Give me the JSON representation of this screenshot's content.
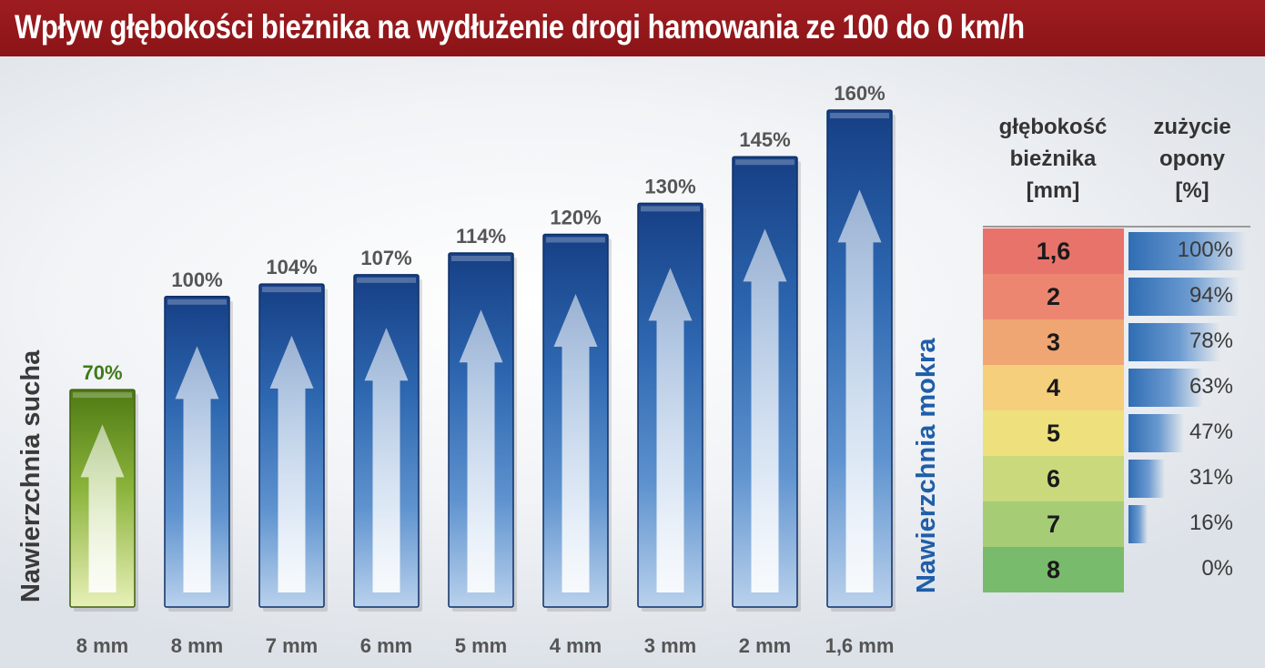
{
  "title": "Wpływ głębokości bieżnika na wydłużenie drogi hamowania ze 100 do 0 km/h",
  "side_labels": {
    "dry": "Nawierzchnia sucha",
    "wet": "Nawierzchnia  mokra"
  },
  "colors": {
    "title_bg": "#9e1c20",
    "dry_bar": "#7aa62d",
    "wet_bar": "#1f4f9a",
    "dry_label_text": "#3f7a1a",
    "wet_label_text": "#1f5ea8"
  },
  "chart_data": {
    "type": "bar",
    "categories": [
      "8 mm",
      "8 mm",
      "7 mm",
      "6 mm",
      "5 mm",
      "4 mm",
      "3 mm",
      "2 mm",
      "1,6 mm"
    ],
    "values": [
      70,
      100,
      104,
      107,
      114,
      120,
      130,
      145,
      160
    ],
    "data_labels": [
      "70%",
      "100%",
      "104%",
      "107%",
      "114%",
      "120%",
      "130%",
      "145%",
      "160%"
    ],
    "bar_groups": [
      "dry",
      "wet",
      "wet",
      "wet",
      "wet",
      "wet",
      "wet",
      "wet",
      "wet"
    ],
    "ylim": [
      0,
      160
    ],
    "grid": false,
    "legend": "none"
  },
  "table": {
    "headers": [
      [
        "głębokość",
        "bieżnika",
        "[mm]"
      ],
      [
        "zużycie",
        "opony",
        "[%]"
      ]
    ],
    "rows": [
      {
        "depth": "1,6",
        "wear": "100%",
        "wear_value": 100,
        "color": "#e8736b"
      },
      {
        "depth": "2",
        "wear": "94%",
        "wear_value": 94,
        "color": "#ec8670"
      },
      {
        "depth": "3",
        "wear": "78%",
        "wear_value": 78,
        "color": "#f0a673"
      },
      {
        "depth": "4",
        "wear": "63%",
        "wear_value": 63,
        "color": "#f6cf7d"
      },
      {
        "depth": "5",
        "wear": "47%",
        "wear_value": 47,
        "color": "#eee07c"
      },
      {
        "depth": "6",
        "wear": "31%",
        "wear_value": 31,
        "color": "#cad97c"
      },
      {
        "depth": "7",
        "wear": "16%",
        "wear_value": 16,
        "color": "#a6cd76"
      },
      {
        "depth": "8",
        "wear": "0%",
        "wear_value": 0,
        "color": "#79bb6c"
      }
    ]
  }
}
